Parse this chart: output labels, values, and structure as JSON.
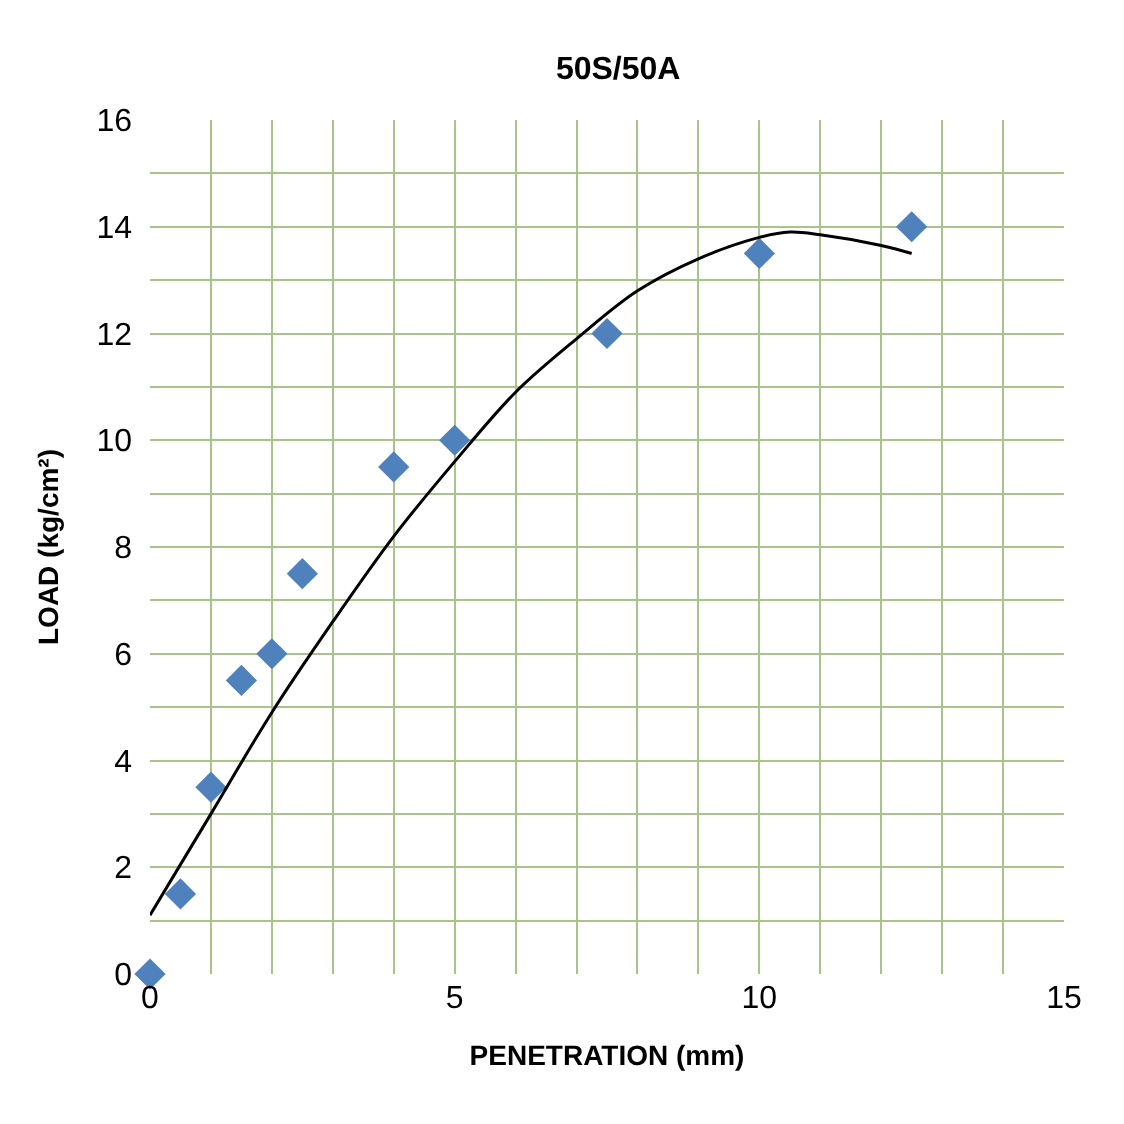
{
  "chart_data": {
    "type": "scatter",
    "title": "50S/50A",
    "xlabel": "PENETRATION (mm)",
    "ylabel": "LOAD (kg/cm²)",
    "series": [
      {
        "color": "#4f81bd",
        "marker": "diamond",
        "x": [
          0,
          0.5,
          1,
          1.5,
          2,
          2.5,
          4,
          5,
          7.5,
          10,
          12.5
        ],
        "values": [
          0,
          1.5,
          3.5,
          5.5,
          6,
          7.5,
          9.5,
          10,
          12,
          13.5,
          14
        ]
      },
      {
        "type": "line",
        "marker": "none",
        "line_style": "solid",
        "color": "#000000",
        "x": [
          0,
          1,
          2,
          3,
          4,
          5,
          6,
          7,
          8,
          9,
          10,
          10.5,
          11,
          12,
          12.5
        ],
        "values": [
          1.1,
          3.0,
          4.9,
          6.6,
          8.2,
          9.6,
          10.9,
          11.9,
          12.8,
          13.4,
          13.8,
          13.9,
          13.85,
          13.65,
          13.5
        ]
      }
    ],
    "xlim": [
      0,
      15
    ],
    "xticks": [
      0,
      {
        "value": 1,
        "label": null
      },
      {
        "value": 2,
        "label": null
      },
      {
        "value": 3,
        "label": null
      },
      {
        "value": 4,
        "label": null
      },
      5,
      {
        "value": 6,
        "label": null
      },
      {
        "value": 7,
        "label": null
      },
      {
        "value": 8,
        "label": null
      },
      {
        "value": 9,
        "label": null
      },
      10,
      {
        "value": 11,
        "label": null
      },
      {
        "value": 12,
        "label": null
      },
      {
        "value": 13,
        "label": null
      },
      {
        "value": 14,
        "label": null
      },
      15
    ],
    "ylim": [
      0,
      16
    ],
    "yticks": [
      0,
      {
        "value": 1,
        "label": null
      },
      2,
      {
        "value": 3,
        "label": null
      },
      4,
      {
        "value": 5,
        "label": null
      },
      6,
      {
        "value": 7,
        "label": null
      },
      8,
      {
        "value": 9,
        "label": null
      },
      10,
      {
        "value": 11,
        "label": null
      },
      12,
      {
        "value": 13,
        "label": null
      },
      14,
      {
        "value": 15,
        "label": null
      },
      16
    ],
    "grid": true
  }
}
